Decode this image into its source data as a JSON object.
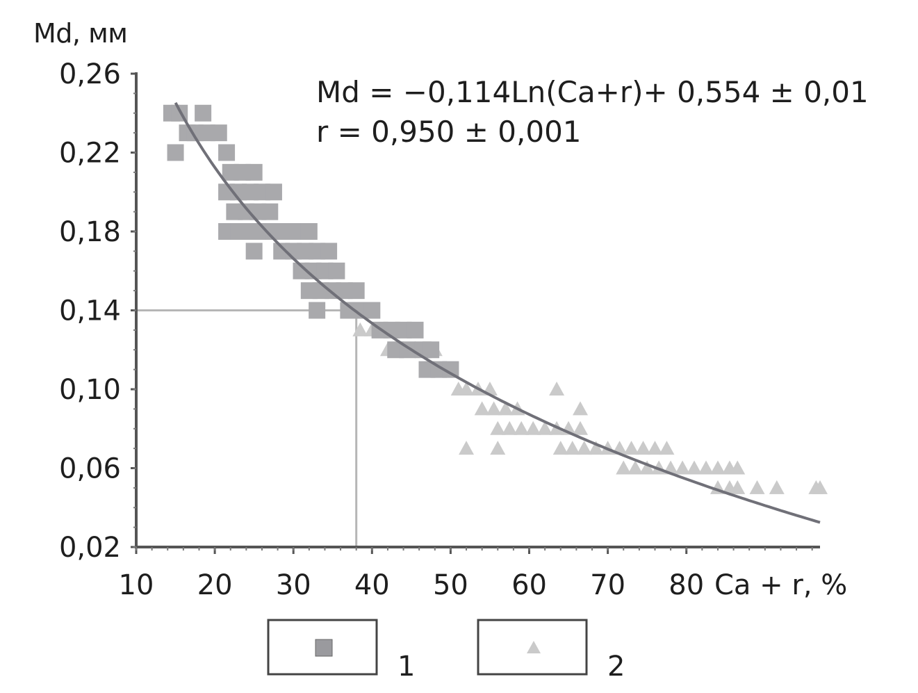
{
  "chart_data": {
    "type": "scatter",
    "ylabel": "Md, мм",
    "xlabel": "Ca + r, %",
    "xlim": [
      10,
      97
    ],
    "ylim": [
      0.02,
      0.26
    ],
    "xticks": [
      "10",
      "20",
      "30",
      "40",
      "50",
      "60",
      "70",
      "80"
    ],
    "yticks": [
      "0,02",
      "0,06",
      "0,10",
      "0,14",
      "0,18",
      "0,22",
      "0,26"
    ],
    "annotations": {
      "equation": "Md = −0,114Ln(Ca+r)+ 0,554 ± 0,01",
      "correlation": "r = 0,950 ± 0,001"
    },
    "trend_curve": {
      "a": -0.114,
      "b": 0.554,
      "x_range": [
        15,
        97
      ],
      "color": "#707078"
    },
    "guide_lines": {
      "x": 38,
      "y": 0.14,
      "color": "#b6b6b6"
    },
    "series": [
      {
        "name": "1",
        "marker": "square",
        "color": "#a9a9ac",
        "points": [
          [
            14.5,
            0.24
          ],
          [
            15.5,
            0.24
          ],
          [
            15,
            0.22
          ],
          [
            16.5,
            0.23
          ],
          [
            17.5,
            0.23
          ],
          [
            18.5,
            0.24
          ],
          [
            19,
            0.23
          ],
          [
            20.5,
            0.23
          ],
          [
            21.5,
            0.22
          ],
          [
            22,
            0.21
          ],
          [
            23.5,
            0.21
          ],
          [
            25,
            0.21
          ],
          [
            21.5,
            0.2
          ],
          [
            23,
            0.2
          ],
          [
            24.5,
            0.2
          ],
          [
            26,
            0.2
          ],
          [
            27.5,
            0.2
          ],
          [
            22.5,
            0.19
          ],
          [
            24,
            0.19
          ],
          [
            25.5,
            0.19
          ],
          [
            27,
            0.19
          ],
          [
            21.5,
            0.18
          ],
          [
            23,
            0.18
          ],
          [
            24.5,
            0.18
          ],
          [
            26,
            0.18
          ],
          [
            27.5,
            0.18
          ],
          [
            29,
            0.18
          ],
          [
            30.5,
            0.18
          ],
          [
            32,
            0.18
          ],
          [
            25,
            0.17
          ],
          [
            28.5,
            0.17
          ],
          [
            30,
            0.17
          ],
          [
            31.5,
            0.17
          ],
          [
            33,
            0.17
          ],
          [
            34.5,
            0.17
          ],
          [
            31,
            0.16
          ],
          [
            32.5,
            0.16
          ],
          [
            34,
            0.16
          ],
          [
            35.5,
            0.16
          ],
          [
            32,
            0.15
          ],
          [
            33.5,
            0.15
          ],
          [
            35,
            0.15
          ],
          [
            36.5,
            0.15
          ],
          [
            38,
            0.15
          ],
          [
            33,
            0.14
          ],
          [
            37,
            0.14
          ],
          [
            38.5,
            0.14
          ],
          [
            40,
            0.14
          ],
          [
            41,
            0.13
          ],
          [
            42.5,
            0.13
          ],
          [
            44,
            0.13
          ],
          [
            45.5,
            0.13
          ],
          [
            43,
            0.12
          ],
          [
            44.5,
            0.12
          ],
          [
            46.5,
            0.12
          ],
          [
            47.5,
            0.12
          ],
          [
            47,
            0.11
          ],
          [
            48.5,
            0.11
          ],
          [
            50,
            0.11
          ]
        ]
      },
      {
        "name": "2",
        "marker": "triangle",
        "color": "#cacaca",
        "points": [
          [
            38.5,
            0.13
          ],
          [
            40,
            0.13
          ],
          [
            42,
            0.12
          ],
          [
            44,
            0.12
          ],
          [
            46,
            0.12
          ],
          [
            48,
            0.12
          ],
          [
            49,
            0.11
          ],
          [
            50,
            0.11
          ],
          [
            51,
            0.1
          ],
          [
            52,
            0.1
          ],
          [
            53.5,
            0.1
          ],
          [
            55,
            0.1
          ],
          [
            63.5,
            0.1
          ],
          [
            54,
            0.09
          ],
          [
            55.5,
            0.09
          ],
          [
            57,
            0.09
          ],
          [
            58.5,
            0.09
          ],
          [
            66.5,
            0.09
          ],
          [
            56,
            0.08
          ],
          [
            57.5,
            0.08
          ],
          [
            59,
            0.08
          ],
          [
            60.5,
            0.08
          ],
          [
            62,
            0.08
          ],
          [
            63.5,
            0.08
          ],
          [
            65,
            0.08
          ],
          [
            66.5,
            0.08
          ],
          [
            52,
            0.07
          ],
          [
            56,
            0.07
          ],
          [
            64,
            0.07
          ],
          [
            65.5,
            0.07
          ],
          [
            67,
            0.07
          ],
          [
            68.5,
            0.07
          ],
          [
            70,
            0.07
          ],
          [
            71.5,
            0.07
          ],
          [
            73,
            0.07
          ],
          [
            74.5,
            0.07
          ],
          [
            76,
            0.07
          ],
          [
            77.5,
            0.07
          ],
          [
            72,
            0.06
          ],
          [
            73.5,
            0.06
          ],
          [
            75,
            0.06
          ],
          [
            76.5,
            0.06
          ],
          [
            78,
            0.06
          ],
          [
            79.5,
            0.06
          ],
          [
            81,
            0.06
          ],
          [
            82.5,
            0.06
          ],
          [
            84,
            0.06
          ],
          [
            85.5,
            0.06
          ],
          [
            86.5,
            0.06
          ],
          [
            84,
            0.05
          ],
          [
            85.5,
            0.05
          ],
          [
            86.5,
            0.05
          ],
          [
            89,
            0.05
          ],
          [
            91.5,
            0.05
          ],
          [
            96.5,
            0.05
          ],
          [
            97,
            0.05
          ]
        ]
      }
    ]
  }
}
